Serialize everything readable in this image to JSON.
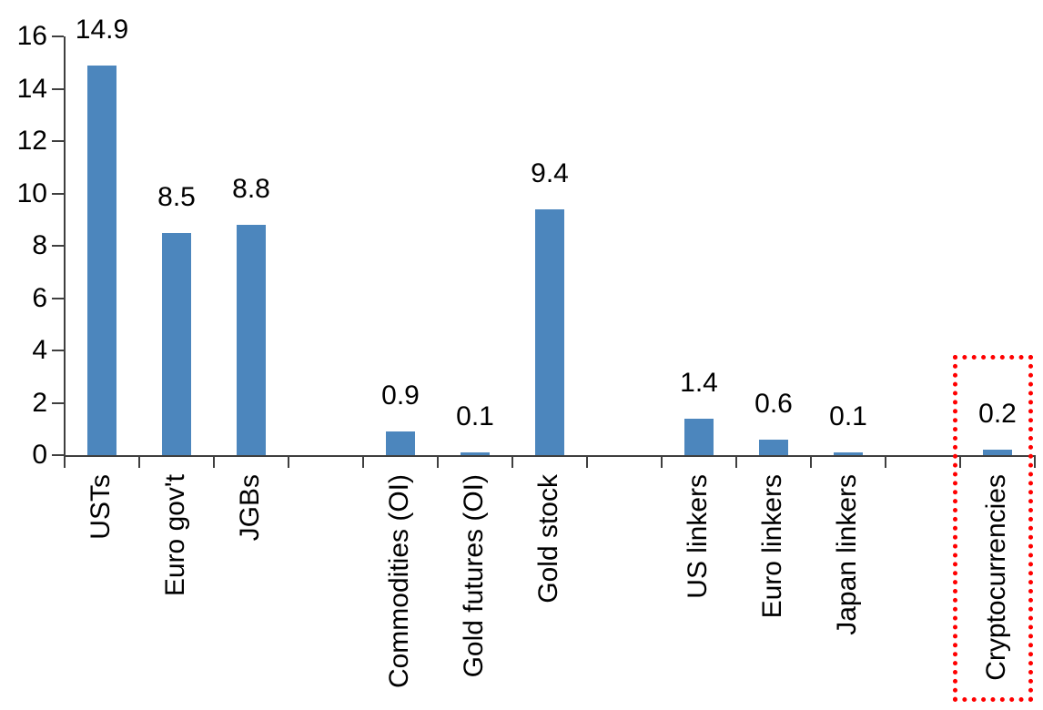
{
  "chart_data": {
    "type": "bar",
    "title": "",
    "xlabel": "",
    "ylabel": "",
    "categories": [
      "USTs",
      "Euro gov't",
      "JGBs",
      "",
      "Commodities (OI)",
      "Gold futures (OI)",
      "Gold stock",
      "",
      "US linkers",
      "Euro linkers",
      "Japan linkers",
      "",
      "Cryptocurrencies"
    ],
    "values": [
      14.9,
      8.5,
      8.8,
      null,
      0.9,
      0.1,
      9.4,
      null,
      1.4,
      0.6,
      0.1,
      null,
      0.2
    ],
    "data_labels": [
      "14.9",
      "8.5",
      "8.8",
      "",
      "0.9",
      "0.1",
      "9.4",
      "",
      "1.4",
      "0.6",
      "0.1",
      "",
      "0.2"
    ],
    "ylim": [
      0,
      16
    ],
    "yticks": [
      "0",
      "2",
      "4",
      "6",
      "8",
      "10",
      "12",
      "14",
      "16"
    ],
    "grid": false,
    "legend": false,
    "bar_color": "#4C86BD",
    "axis_color": "#3F3F3F",
    "text_color": "#000000",
    "highlight": {
      "category": "Cryptocurrencies",
      "slot_index": 12,
      "style": "dotted-box",
      "color": "#FF0000"
    }
  }
}
